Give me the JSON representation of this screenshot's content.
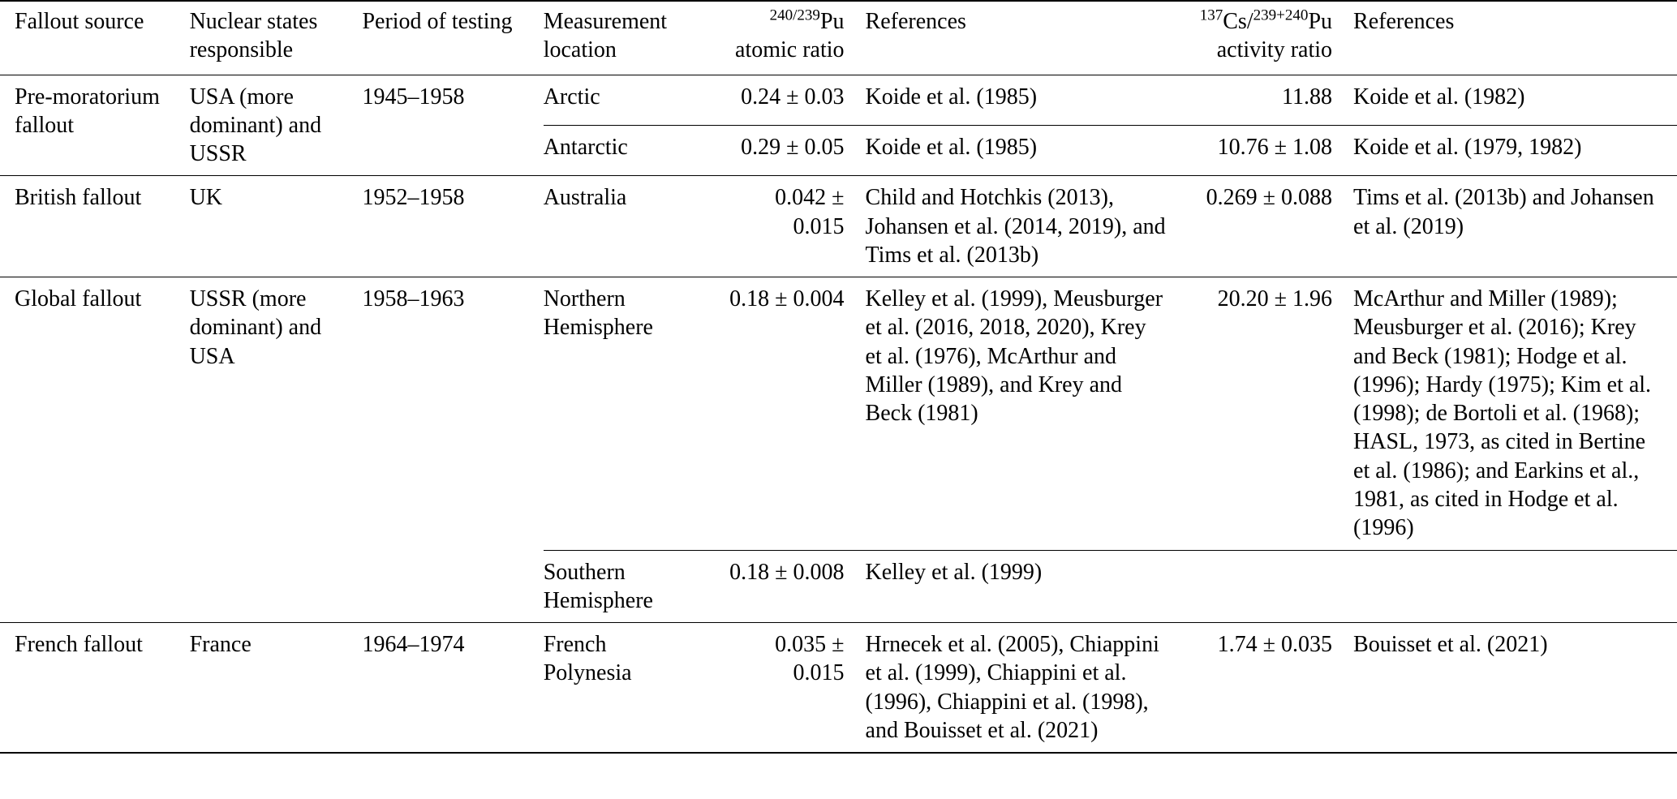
{
  "table": {
    "headers": {
      "fallout_source": "Fallout source",
      "nuclear_states": "Nuclear states responsible",
      "period": "Period of testing",
      "location": "Measurement location",
      "pu_ratio": {
        "sup": "240/239",
        "base": "Pu",
        "line2": "atomic ratio"
      },
      "references_pu": "References",
      "cs_ratio": {
        "sup1": "137",
        "base1": "Cs/",
        "sup2": "239+240",
        "base2": "Pu",
        "line2": "activity ratio"
      },
      "references_cs": "References"
    },
    "groups": [
      {
        "source": "Pre-moratorium fallout",
        "states": "USA (more dominant) and USSR",
        "period": "1945–1958",
        "rows": [
          {
            "location": "Arctic",
            "pu": "0.24 ± 0.03",
            "ref_pu": "Koide et al. (1985)",
            "cs": "11.88",
            "ref_cs": "Koide et al. (1982)"
          },
          {
            "location": "Antarctic",
            "pu": "0.29 ± 0.05",
            "ref_pu": "Koide et al. (1985)",
            "cs": "10.76 ± 1.08",
            "ref_cs": "Koide et al. (1979, 1982)"
          }
        ]
      },
      {
        "source": "British fallout",
        "states": "UK",
        "period": "1952–1958",
        "rows": [
          {
            "location": "Australia",
            "pu": "0.042 ± 0.015",
            "ref_pu": "Child and Hotchkis (2013), Johansen et al. (2014, 2019), and Tims et al. (2013b)",
            "cs": "0.269 ± 0.088",
            "ref_cs": "Tims et al. (2013b) and Johansen et al. (2019)"
          }
        ]
      },
      {
        "source": "Global fallout",
        "states": "USSR (more dominant) and USA",
        "period": "1958–1963",
        "rows": [
          {
            "location": "Northern Hemisphere",
            "pu": "0.18 ± 0.004",
            "ref_pu": "Kelley et al. (1999), Meusburger et al. (2016, 2018, 2020), Krey et al. (1976), McArthur and Miller (1989), and Krey and Beck (1981)",
            "cs": "20.20 ± 1.96",
            "ref_cs": "McArthur and Miller (1989); Meusburger et al. (2016); Krey and Beck (1981); Hodge et al. (1996); Hardy (1975); Kim et al. (1998); de Bortoli et al. (1968); HASL, 1973, as cited in Bertine et al. (1986); and Earkins et al., 1981, as cited in Hodge et al. (1996)"
          },
          {
            "location": "Southern Hemisphere",
            "pu": "0.18 ± 0.008",
            "ref_pu": "Kelley et al. (1999)",
            "cs": "",
            "ref_cs": ""
          }
        ]
      },
      {
        "source": "French fallout",
        "states": "France",
        "period": "1964–1974",
        "rows": [
          {
            "location": "French Polynesia",
            "pu": "0.035 ± 0.015",
            "ref_pu": "Hrnecek et al. (2005), Chiappini et al. (1999), Chiappini et al. (1996), Chiappini et al. (1998), and Bouisset et al. (2021)",
            "cs": "1.74 ± 0.035",
            "ref_cs": "Bouisset et al. (2021)"
          }
        ]
      }
    ]
  }
}
